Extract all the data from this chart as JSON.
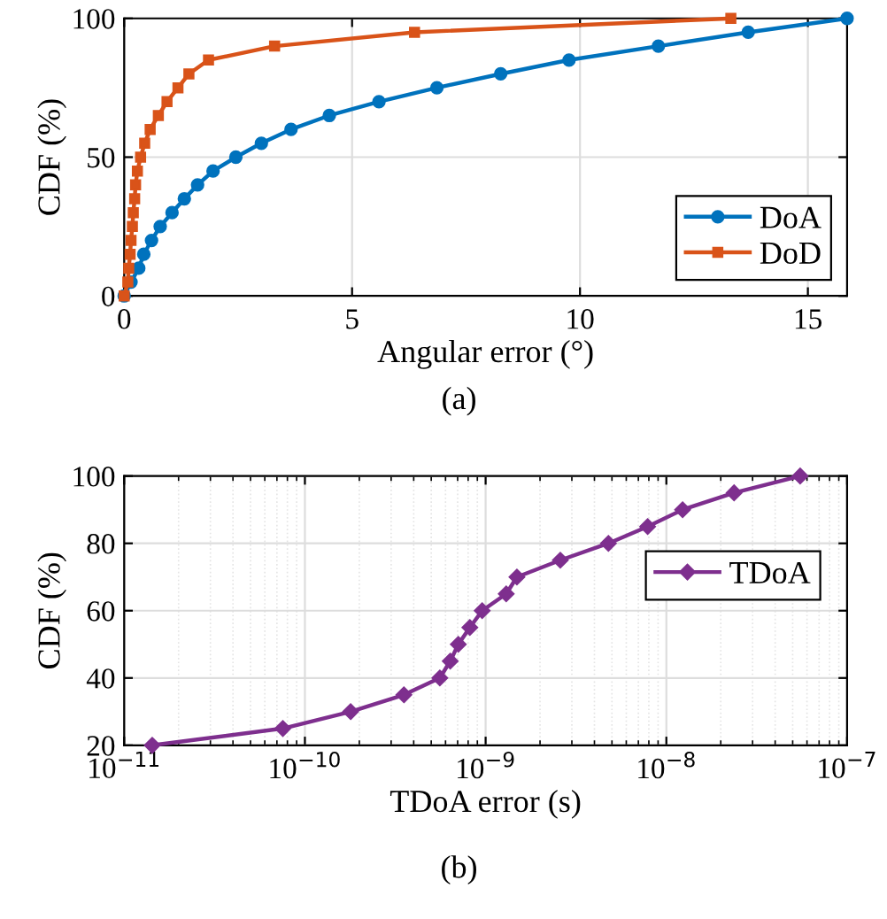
{
  "chart_data": [
    {
      "type": "line",
      "xlabel": "Angular error (°)",
      "ylabel": "CDF (%)",
      "xlim": [
        0,
        15.86
      ],
      "ylim": [
        0,
        100
      ],
      "xticks": [
        0,
        5,
        10,
        15
      ],
      "yticks": [
        0,
        50,
        100
      ],
      "grid": true,
      "legend": "bottom right",
      "annotations": [
        "(a)"
      ],
      "series": [
        {
          "name": "DoA",
          "color": "#0072bd",
          "marker": "circle",
          "x": [
            0,
            0.15,
            0.32,
            0.43,
            0.6,
            0.79,
            1.05,
            1.32,
            1.61,
            1.95,
            2.45,
            3.01,
            3.66,
            4.5,
            5.59,
            6.86,
            8.26,
            9.76,
            11.72,
            13.69,
            15.86
          ],
          "values": [
            0,
            5,
            10,
            15,
            20,
            25,
            30,
            35,
            40,
            45,
            50,
            55,
            60,
            65,
            70,
            75,
            80,
            85,
            90,
            95,
            100
          ]
        },
        {
          "name": "DoD",
          "color": "#d95319",
          "marker": "square",
          "x": [
            0,
            0.08,
            0.1,
            0.13,
            0.15,
            0.18,
            0.2,
            0.23,
            0.25,
            0.29,
            0.36,
            0.45,
            0.57,
            0.75,
            0.94,
            1.18,
            1.42,
            1.85,
            3.3,
            6.37,
            13.31
          ],
          "values": [
            0,
            5,
            10,
            15,
            20,
            25,
            30,
            35,
            40,
            45,
            50,
            55,
            60,
            65,
            70,
            75,
            80,
            85,
            90,
            95,
            100
          ]
        }
      ]
    },
    {
      "type": "line",
      "xlabel": "TDoA error (s)",
      "ylabel": "CDF (%)",
      "log": "x",
      "xlim": [
        1e-11,
        1e-07
      ],
      "ylim": [
        20,
        100
      ],
      "xticks": [
        {
          "value": 1e-11,
          "label": "10$^{−11}$"
        },
        {
          "value": 1e-10,
          "label": "10$^{−10}$"
        },
        {
          "value": 1e-09,
          "label": "10$^{−9}$"
        },
        {
          "value": 1e-08,
          "label": "10$^{−8}$"
        },
        {
          "value": 1e-07,
          "label": "10$^{−7}$"
        }
      ],
      "yticks": [
        20,
        40,
        60,
        80,
        100
      ],
      "grid": true,
      "legend": "top right",
      "annotations": [
        "(b)"
      ],
      "series": [
        {
          "name": "TDoA",
          "color": "#7e2f8e",
          "marker": "diamond",
          "x": [
            1.43e-11,
            7.55e-11,
            1.79e-10,
            3.53e-10,
            5.58e-10,
            6.37e-10,
            7.06e-10,
            8.18e-10,
            9.57e-10,
            1.3e-09,
            1.49e-09,
            2.59e-09,
            4.78e-09,
            7.88e-09,
            1.23e-08,
            2.37e-08,
            5.5e-08
          ],
          "values": [
            20,
            25,
            30,
            35,
            40,
            45,
            50,
            55,
            60,
            65,
            70,
            75,
            80,
            85,
            90,
            95,
            100
          ]
        }
      ]
    }
  ]
}
